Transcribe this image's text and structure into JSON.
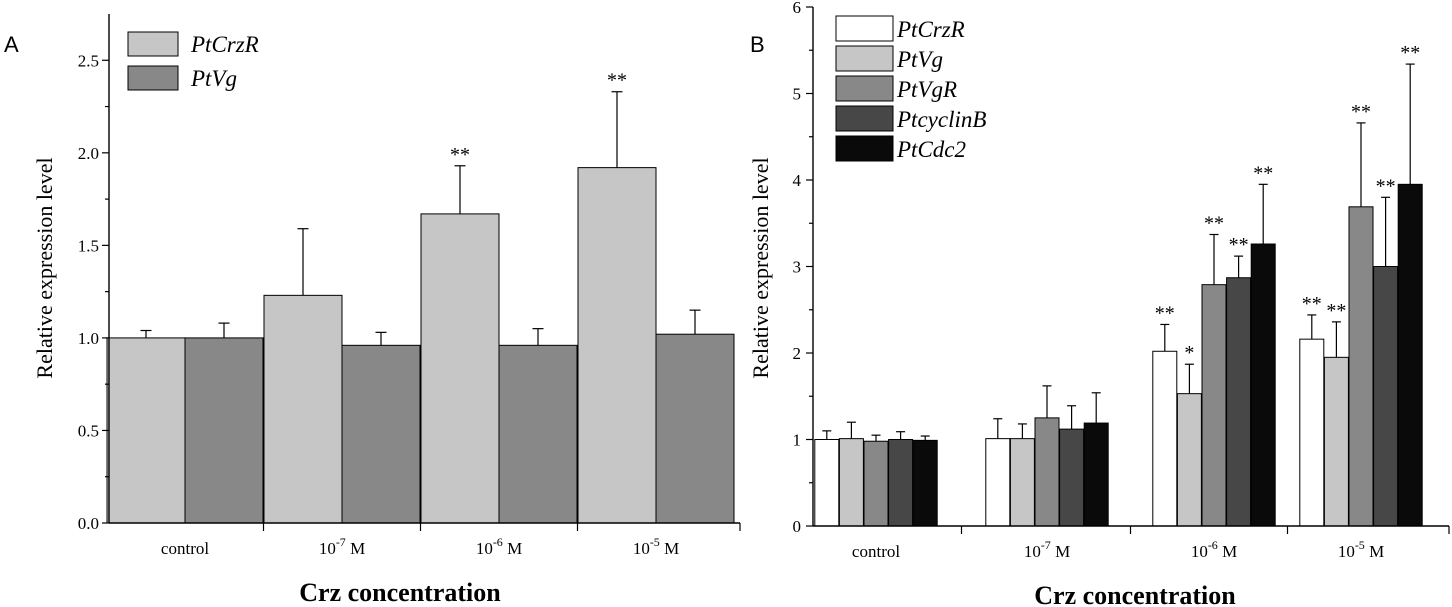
{
  "chart_data": [
    {
      "type": "bar",
      "panel": "A",
      "categories": [
        "control",
        "10^-7 M",
        "10^-6 M",
        "10^-5 M"
      ],
      "category_labels": [
        {
          "base": "control",
          "exp": "",
          "unit": ""
        },
        {
          "base": "10",
          "exp": "-7",
          "unit": " M"
        },
        {
          "base": "10",
          "exp": "-6",
          "unit": " M"
        },
        {
          "base": "10",
          "exp": "-5",
          "unit": " M"
        }
      ],
      "series": [
        {
          "name": "PtCrzR",
          "color": "#c6c6c6",
          "values": [
            1.0,
            1.23,
            1.67,
            1.92
          ],
          "errors": [
            0.04,
            0.36,
            0.26,
            0.41
          ],
          "significance": [
            "",
            "",
            "**",
            "**"
          ]
        },
        {
          "name": "PtVg",
          "color": "#888888",
          "values": [
            1.0,
            0.96,
            0.96,
            1.02
          ],
          "errors": [
            0.08,
            0.07,
            0.09,
            0.13
          ],
          "significance": [
            "",
            "",
            "",
            ""
          ]
        }
      ],
      "title": "",
      "xlabel": "Crz concentration",
      "ylabel": "Relative expression level",
      "ylim": [
        0,
        2.75
      ],
      "yticks": [
        "0.0",
        "0.5",
        "1.0",
        "1.5",
        "2.0",
        "2.5"
      ],
      "legend": "top-left"
    },
    {
      "type": "bar",
      "panel": "B",
      "categories": [
        "control",
        "10^-7 M",
        "10^-6 M",
        "10^-5 M"
      ],
      "category_labels": [
        {
          "base": "control",
          "exp": "",
          "unit": ""
        },
        {
          "base": "10",
          "exp": "-7",
          "unit": " M"
        },
        {
          "base": "10",
          "exp": "-6",
          "unit": " M"
        },
        {
          "base": "10",
          "exp": "-5",
          "unit": " M"
        }
      ],
      "series": [
        {
          "name": "PtCrzR",
          "color": "#ffffff",
          "values": [
            1.0,
            1.01,
            2.02,
            2.16
          ],
          "errors": [
            0.1,
            0.23,
            0.31,
            0.28
          ],
          "significance": [
            "",
            "",
            "**",
            "**"
          ]
        },
        {
          "name": "PtVg",
          "color": "#c6c6c6",
          "values": [
            1.01,
            1.01,
            1.53,
            1.95
          ],
          "errors": [
            0.19,
            0.17,
            0.34,
            0.41
          ],
          "significance": [
            "",
            "",
            "*",
            "**"
          ]
        },
        {
          "name": "PtVgR",
          "color": "#888888",
          "values": [
            0.98,
            1.25,
            2.79,
            3.69
          ],
          "errors": [
            0.07,
            0.37,
            0.58,
            0.97
          ],
          "significance": [
            "",
            "",
            "**",
            "**"
          ]
        },
        {
          "name": "PtcyclinB",
          "color": "#474747",
          "values": [
            1.0,
            1.12,
            2.87,
            3.0
          ],
          "errors": [
            0.09,
            0.27,
            0.25,
            0.8
          ],
          "significance": [
            "",
            "",
            "**",
            "**"
          ]
        },
        {
          "name": "PtCdc2",
          "color": "#0a0a0a",
          "values": [
            0.99,
            1.19,
            3.26,
            3.95
          ],
          "errors": [
            0.05,
            0.35,
            0.69,
            1.39
          ],
          "significance": [
            "",
            "",
            "**",
            "**"
          ]
        }
      ],
      "title": "",
      "xlabel": "Crz concentration",
      "ylabel": "Relative expression level",
      "ylim": [
        0,
        6
      ],
      "yticks": [
        "0",
        "1",
        "2",
        "3",
        "4",
        "5",
        "6"
      ],
      "legend": "top-left"
    }
  ]
}
